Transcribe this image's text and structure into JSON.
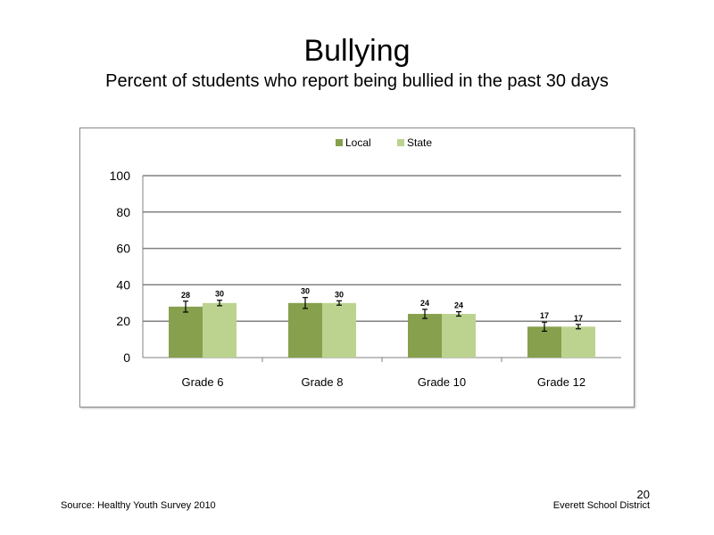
{
  "slide": {
    "title": "Bullying",
    "subtitle": "Percent of students who report being bullied in the past 30 days",
    "source": "Source: Healthy Youth Survey 2010",
    "organization": "Everett School District",
    "page_number": "20"
  },
  "chart_data": {
    "type": "bar",
    "categories": [
      "Grade 6",
      "Grade 8",
      "Grade 10",
      "Grade 12"
    ],
    "series": [
      {
        "name": "Local",
        "color": "#86a04d",
        "values": [
          28,
          30,
          24,
          17
        ],
        "error": [
          3,
          3,
          2.5,
          2.5
        ]
      },
      {
        "name": "State",
        "color": "#bcd38f",
        "values": [
          30,
          30,
          24,
          17
        ],
        "error": [
          1.5,
          1.2,
          1.2,
          1.2
        ]
      }
    ],
    "ylim": [
      0,
      100
    ],
    "yticks": [
      0,
      20,
      40,
      60,
      80,
      100
    ],
    "grid": true,
    "legend": "top-center",
    "data_labels": true
  }
}
